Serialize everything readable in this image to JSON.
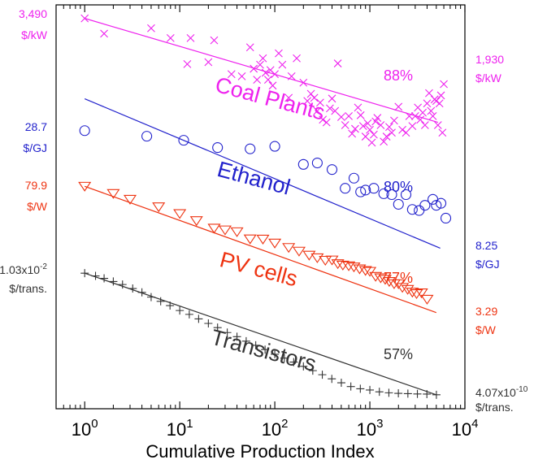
{
  "chart_data": {
    "type": "scatter",
    "xscale": "log",
    "yscale": "log",
    "xlim": [
      0.5,
      10000
    ],
    "xlabel": "Cumulative Production Index",
    "xticks": [
      {
        "value": 1,
        "base": "10",
        "exp": "0"
      },
      {
        "value": 10,
        "base": "10",
        "exp": "1"
      },
      {
        "value": 100,
        "base": "10",
        "exp": "2"
      },
      {
        "value": 1000,
        "base": "10",
        "exp": "3"
      },
      {
        "value": 10000,
        "base": "10",
        "exp": "4"
      }
    ],
    "grid": false,
    "legend": "none",
    "series": [
      {
        "name": "Coal Plants",
        "color": "#ee22ee",
        "marker": "x",
        "progress_ratio": "88%",
        "left_value": "3,490",
        "left_unit": "$/kW",
        "right_value": "1,930",
        "right_unit": "$/kW",
        "fit": {
          "x1": 1,
          "y1": 3490,
          "x2": 5200,
          "y2": 1930
        },
        "x": [
          1.0,
          1.6,
          5.0,
          8.0,
          12.0,
          13.0,
          20.0,
          23.0,
          35.0,
          45.0,
          55.0,
          60.0,
          65.0,
          70.0,
          75.0,
          80.0,
          85.0,
          90.0,
          95.0,
          100.0,
          110.0,
          120.0,
          140.0,
          150.0,
          170.0,
          200.0,
          220.0,
          240.0,
          260.0,
          280.0,
          300.0,
          320.0,
          350.0,
          380.0,
          400.0,
          430.0,
          460.0,
          500.0,
          550.0,
          600.0,
          650.0,
          700.0,
          750.0,
          800.0,
          850.0,
          900.0,
          950.0,
          1000.0,
          1050.0,
          1100.0,
          1150.0,
          1200.0,
          1300.0,
          1400.0,
          1500.0,
          1600.0,
          1700.0,
          1800.0,
          2000.0,
          2200.0,
          2400.0,
          2600.0,
          2800.0,
          3000.0,
          3200.0,
          3400.0,
          3600.0,
          3800.0,
          4000.0,
          4200.0,
          4400.0,
          4600.0,
          4800.0,
          5000.0,
          5200.0,
          5400.0,
          5600.0,
          5800.0,
          6000.0
        ],
        "y": [
          3490,
          3200,
          3300,
          3120,
          2690,
          3120,
          2720,
          3080,
          2540,
          2510,
          2960,
          2620,
          2460,
          2680,
          2780,
          2560,
          2460,
          2600,
          2380,
          2540,
          2860,
          2680,
          2220,
          2510,
          2780,
          2420,
          2180,
          2270,
          2220,
          2060,
          2160,
          1960,
          1930,
          2090,
          2210,
          2060,
          2700,
          1990,
          1900,
          2000,
          1810,
          1860,
          2100,
          2010,
          1890,
          1780,
          1920,
          1850,
          1720,
          1800,
          1940,
          1980,
          1900,
          1730,
          1780,
          1880,
          1820,
          1950,
          2110,
          1850,
          1820,
          2000,
          1890,
          2000,
          2100,
          1960,
          2040,
          1900,
          2150,
          2280,
          2060,
          2000,
          2200,
          2180,
          1900,
          2150,
          2250,
          1820,
          2400
        ]
      },
      {
        "name": "Ethanol",
        "color": "#2222cc",
        "marker": "o",
        "progress_ratio": "80%",
        "left_value": "28.7",
        "left_unit": "$/GJ",
        "right_value": "8.25",
        "right_unit": "$/GJ",
        "fit": {
          "x1": 1,
          "y1": 28.7,
          "x2": 5500,
          "y2": 8.25
        },
        "x": [
          1.0,
          4.5,
          11.0,
          25.0,
          55.0,
          100.0,
          200.0,
          280.0,
          400.0,
          550.0,
          680.0,
          800.0,
          900.0,
          1100.0,
          1400.0,
          1700.0,
          2000.0,
          2400.0,
          2800.0,
          3300.0,
          3800.0,
          4600.0,
          5000.0,
          5600.0,
          6300.0
        ],
        "y": [
          22.0,
          21.0,
          20.3,
          19.1,
          18.9,
          19.3,
          16.6,
          16.8,
          15.9,
          13.6,
          14.8,
          13.2,
          13.4,
          13.6,
          13.0,
          12.9,
          11.9,
          12.9,
          11.4,
          11.3,
          11.8,
          12.4,
          11.8,
          12.0,
          10.6
        ]
      },
      {
        "name": "PV cells",
        "color": "#ee3311",
        "marker": "v",
        "progress_ratio": "77%",
        "left_value": "79.9",
        "left_unit": "$/W",
        "right_value": "3.29",
        "right_unit": "$/W",
        "fit": {
          "x1": 1,
          "y1": 79.9,
          "x2": 5000,
          "y2": 3.29
        },
        "x": [
          1.0,
          2.0,
          3.0,
          6.0,
          10.0,
          15.0,
          23.0,
          30.0,
          40.0,
          55.0,
          75.0,
          100.0,
          140.0,
          180.0,
          230.0,
          280.0,
          340.0,
          400.0,
          460.0,
          520.0,
          600.0,
          680.0,
          780.0,
          900.0,
          1000.0,
          1150.0,
          1300.0,
          1450.0,
          1600.0,
          1800.0,
          2000.0,
          2200.0,
          2500.0,
          2800.0,
          3100.0,
          3500.0,
          4000.0
        ],
        "y": [
          79.9,
          66.5,
          57.5,
          47.5,
          40.0,
          33.5,
          27.7,
          26.5,
          25.3,
          21.1,
          21.0,
          19.0,
          17.0,
          15.5,
          14.0,
          13.1,
          12.3,
          12.4,
          11.3,
          10.9,
          10.7,
          10.4,
          9.9,
          9.5,
          9.3,
          8.2,
          7.9,
          7.6,
          7.2,
          6.8,
          6.8,
          6.2,
          5.9,
          5.5,
          5.3,
          5.4,
          4.6
        ]
      },
      {
        "name": "Transistors",
        "color": "#333333",
        "marker": "+",
        "progress_ratio": "57%",
        "left_value": "1.03x10",
        "left_exp": "-2",
        "left_unit": "$/trans.",
        "right_value": "4.07x10",
        "right_exp": "-10",
        "right_unit": "$/trans.",
        "fit": {
          "x1": 1,
          "y1": 0.0103,
          "x2": 5000,
          "y2": 4.07e-10
        },
        "x": [
          1.0,
          1.3,
          1.6,
          2.0,
          2.5,
          3.2,
          4.0,
          5.0,
          6.3,
          7.9,
          10.0,
          12.6,
          15.8,
          20.0,
          25.0,
          31.6,
          40.0,
          50.0,
          63.0,
          79.0,
          100.0,
          126.0,
          158.0,
          200.0,
          251.0,
          316.0,
          398.0,
          501.0,
          631.0,
          794.0,
          1000.0,
          1259.0,
          1585.0,
          1995.0,
          2512.0,
          3162.0,
          3981.0,
          5012.0
        ],
        "y": [
          0.0103,
          0.007,
          0.005,
          0.0032,
          0.0021,
          0.0012,
          0.0007,
          0.00036,
          0.0002,
          0.00011,
          5.5e-05,
          3.2e-05,
          1.7e-05,
          9e-06,
          5e-06,
          2.5e-06,
          1.4e-06,
          7.5e-07,
          4.2e-07,
          2.3e-07,
          1.2e-07,
          7e-08,
          4e-08,
          2.2e-08,
          1.2e-08,
          6.8e-09,
          3.8e-09,
          2.2e-09,
          1.3e-09,
          9.5e-10,
          8e-10,
          6.2e-10,
          5.4e-10,
          5e-10,
          4.8e-10,
          4.6e-10,
          4.5e-10,
          4.07e-10
        ]
      }
    ]
  }
}
